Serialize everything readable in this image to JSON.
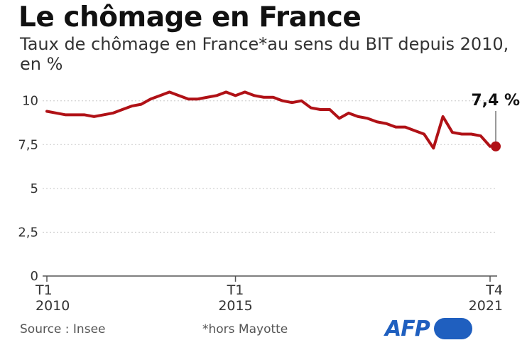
{
  "chart_data": {
    "type": "line",
    "title": "Le chômage en France",
    "subtitle": "Taux de chômage en France*au sens du BIT depuis 2010, en %",
    "yticks": [
      0,
      2.5,
      5,
      7.5,
      10
    ],
    "ytick_labels": [
      "0",
      "2,5",
      "5",
      "7,5",
      "10"
    ],
    "ylim": [
      0,
      10.8
    ],
    "xlim": [
      0,
      47
    ],
    "xticks": [
      {
        "x": 0,
        "line1": "T1",
        "line2": "2010"
      },
      {
        "x": 20,
        "line1": "T1",
        "line2": "2015"
      },
      {
        "x": 47,
        "line1": "T4",
        "line2": "2021"
      }
    ],
    "grid": true,
    "series": [
      {
        "color": "#b01116",
        "x": [
          0,
          1,
          2,
          3,
          4,
          5,
          6,
          7,
          8,
          9,
          10,
          11,
          12,
          13,
          14,
          15,
          16,
          17,
          18,
          19,
          20,
          21,
          22,
          23,
          24,
          25,
          26,
          27,
          28,
          29,
          30,
          31,
          32,
          33,
          34,
          35,
          36,
          37,
          38,
          39,
          40,
          41,
          42,
          43,
          44,
          45,
          46,
          47
        ],
        "y": [
          9.4,
          9.3,
          9.2,
          9.2,
          9.2,
          9.1,
          9.2,
          9.3,
          9.5,
          9.7,
          9.8,
          10.1,
          10.3,
          10.5,
          10.3,
          10.1,
          10.1,
          10.2,
          10.3,
          10.5,
          10.3,
          10.5,
          10.3,
          10.2,
          10.2,
          10.0,
          9.9,
          10.0,
          9.6,
          9.5,
          9.5,
          9.0,
          9.3,
          9.1,
          9.0,
          8.8,
          8.7,
          8.5,
          8.5,
          8.3,
          8.1,
          7.3,
          9.1,
          8.2,
          8.1,
          8.1,
          8.0,
          7.4
        ]
      }
    ],
    "callout": {
      "x": 47,
      "y": 7.4,
      "label": "7,4 %"
    }
  },
  "footer": {
    "source": "Source : Insee",
    "note": "*hors Mayotte",
    "logo": "AFP"
  }
}
